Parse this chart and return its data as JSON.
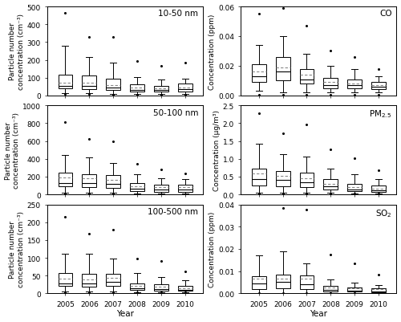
{
  "years": [
    "2005",
    "2006",
    "2007",
    "2008",
    "2009",
    "2010"
  ],
  "panels_left": [
    {
      "label": "10-50 nm",
      "ylabel": "Particle number\nconcentration (cm⁻³)",
      "ylim": [
        0,
        500
      ],
      "yticks": [
        0,
        100,
        200,
        300,
        400,
        500
      ],
      "stats": {
        "p5": [
          10,
          10,
          5,
          5,
          5,
          5
        ],
        "p10": [
          15,
          15,
          10,
          8,
          8,
          8
        ],
        "q25": [
          40,
          35,
          30,
          20,
          20,
          20
        ],
        "median": [
          55,
          55,
          45,
          30,
          30,
          35
        ],
        "mean": [
          70,
          70,
          60,
          45,
          40,
          45
        ],
        "q75": [
          115,
          110,
          95,
          62,
          55,
          65
        ],
        "p90": [
          280,
          215,
          185,
          105,
          88,
          92
        ],
        "p95": [
          465,
          330,
          330,
          195,
          165,
          185
        ]
      }
    },
    {
      "label": "50-100 nm",
      "ylabel": "Particle number\nconcentration (cm⁻³)",
      "ylim": [
        0,
        1000
      ],
      "yticks": [
        0,
        200,
        400,
        600,
        800,
        1000
      ],
      "stats": {
        "p5": [
          10,
          10,
          8,
          5,
          5,
          5
        ],
        "p10": [
          20,
          15,
          15,
          10,
          8,
          8
        ],
        "q25": [
          90,
          80,
          75,
          35,
          30,
          30
        ],
        "median": [
          130,
          130,
          115,
          60,
          52,
          52
        ],
        "mean": [
          190,
          180,
          165,
          95,
          78,
          78
        ],
        "q75": [
          245,
          225,
          215,
          130,
          110,
          112
        ],
        "p90": [
          440,
          415,
          355,
          230,
          180,
          168
        ],
        "p95": [
          815,
          620,
          600,
          340,
          285,
          235
        ]
      }
    },
    {
      "label": "100-500 nm",
      "ylabel": "Particle number\nconcentration (cm⁻³)",
      "ylim": [
        0,
        250
      ],
      "yticks": [
        0,
        50,
        100,
        150,
        200,
        250
      ],
      "stats": {
        "p5": [
          3,
          3,
          3,
          2,
          2,
          2
        ],
        "p10": [
          5,
          5,
          5,
          3,
          3,
          3
        ],
        "q25": [
          20,
          18,
          20,
          10,
          8,
          8
        ],
        "median": [
          28,
          28,
          32,
          14,
          12,
          10
        ],
        "mean": [
          42,
          40,
          44,
          21,
          18,
          15
        ],
        "q75": [
          58,
          55,
          55,
          28,
          25,
          22
        ],
        "p90": [
          112,
          112,
          97,
          57,
          47,
          36
        ],
        "p95": [
          215,
          168,
          178,
          97,
          90,
          62
        ]
      }
    }
  ],
  "panels_right": [
    {
      "label": "CO",
      "ylabel": "Concentration (ppm)",
      "ylim": [
        0,
        0.06
      ],
      "yticks": [
        0.0,
        0.02,
        0.04,
        0.06
      ],
      "stats": {
        "p5": [
          0.0005,
          0.0005,
          0.0005,
          0.0005,
          0.0005,
          0.0005
        ],
        "p10": [
          0.003,
          0.002,
          0.002,
          0.002,
          0.002,
          0.002
        ],
        "q25": [
          0.009,
          0.01,
          0.008,
          0.005,
          0.005,
          0.004
        ],
        "median": [
          0.013,
          0.016,
          0.011,
          0.007,
          0.007,
          0.006
        ],
        "mean": [
          0.016,
          0.019,
          0.014,
          0.009,
          0.008,
          0.007
        ],
        "q75": [
          0.021,
          0.026,
          0.018,
          0.012,
          0.011,
          0.009
        ],
        "p90": [
          0.034,
          0.04,
          0.028,
          0.02,
          0.018,
          0.013
        ],
        "p95": [
          0.055,
          0.059,
          0.047,
          0.03,
          0.026,
          0.018
        ]
      }
    },
    {
      "label": "PM$_{2.5}$",
      "ylabel": "Concentration (μg/m³)",
      "ylim": [
        0,
        2.5
      ],
      "yticks": [
        0.0,
        0.5,
        1.0,
        1.5,
        2.0,
        2.5
      ],
      "stats": {
        "p5": [
          0.02,
          0.02,
          0.02,
          0.02,
          0.02,
          0.02
        ],
        "p10": [
          0.05,
          0.05,
          0.05,
          0.04,
          0.03,
          0.03
        ],
        "q25": [
          0.25,
          0.22,
          0.2,
          0.13,
          0.09,
          0.08
        ],
        "median": [
          0.42,
          0.4,
          0.35,
          0.22,
          0.14,
          0.12
        ],
        "mean": [
          0.58,
          0.52,
          0.45,
          0.3,
          0.2,
          0.17
        ],
        "q75": [
          0.72,
          0.65,
          0.62,
          0.42,
          0.3,
          0.25
        ],
        "p90": [
          1.42,
          1.12,
          1.07,
          0.72,
          0.57,
          0.42
        ],
        "p95": [
          2.28,
          1.72,
          1.97,
          1.27,
          1.02,
          0.67
        ]
      }
    },
    {
      "label": "SO$_2$",
      "ylabel": "Concentration (ppm)",
      "ylim": [
        0,
        0.04
      ],
      "yticks": [
        0.0,
        0.01,
        0.02,
        0.03,
        0.04
      ],
      "stats": {
        "p5": [
          0.0001,
          0.0001,
          0.0001,
          0.0001,
          0.0001,
          0.0001
        ],
        "p10": [
          0.0003,
          0.0003,
          0.0003,
          0.0002,
          0.0002,
          0.0002
        ],
        "q25": [
          0.002,
          0.0022,
          0.002,
          0.0008,
          0.0008,
          0.0005
        ],
        "median": [
          0.0045,
          0.005,
          0.004,
          0.0015,
          0.0012,
          0.001
        ],
        "mean": [
          0.0065,
          0.0068,
          0.0065,
          0.0028,
          0.0022,
          0.0018
        ],
        "q75": [
          0.0078,
          0.0085,
          0.0082,
          0.0032,
          0.0027,
          0.0022
        ],
        "p90": [
          0.017,
          0.019,
          0.0135,
          0.0062,
          0.0048,
          0.0038
        ],
        "p95": [
          0.0408,
          0.0385,
          0.0378,
          0.0175,
          0.0135,
          0.0085
        ]
      }
    }
  ],
  "box_color": "#ffffff",
  "median_color": "#000000",
  "mean_color": "#888888",
  "whisker_color": "#000000",
  "flier_color": "#000000",
  "figsize": [
    5.0,
    4.02
  ],
  "dpi": 100
}
